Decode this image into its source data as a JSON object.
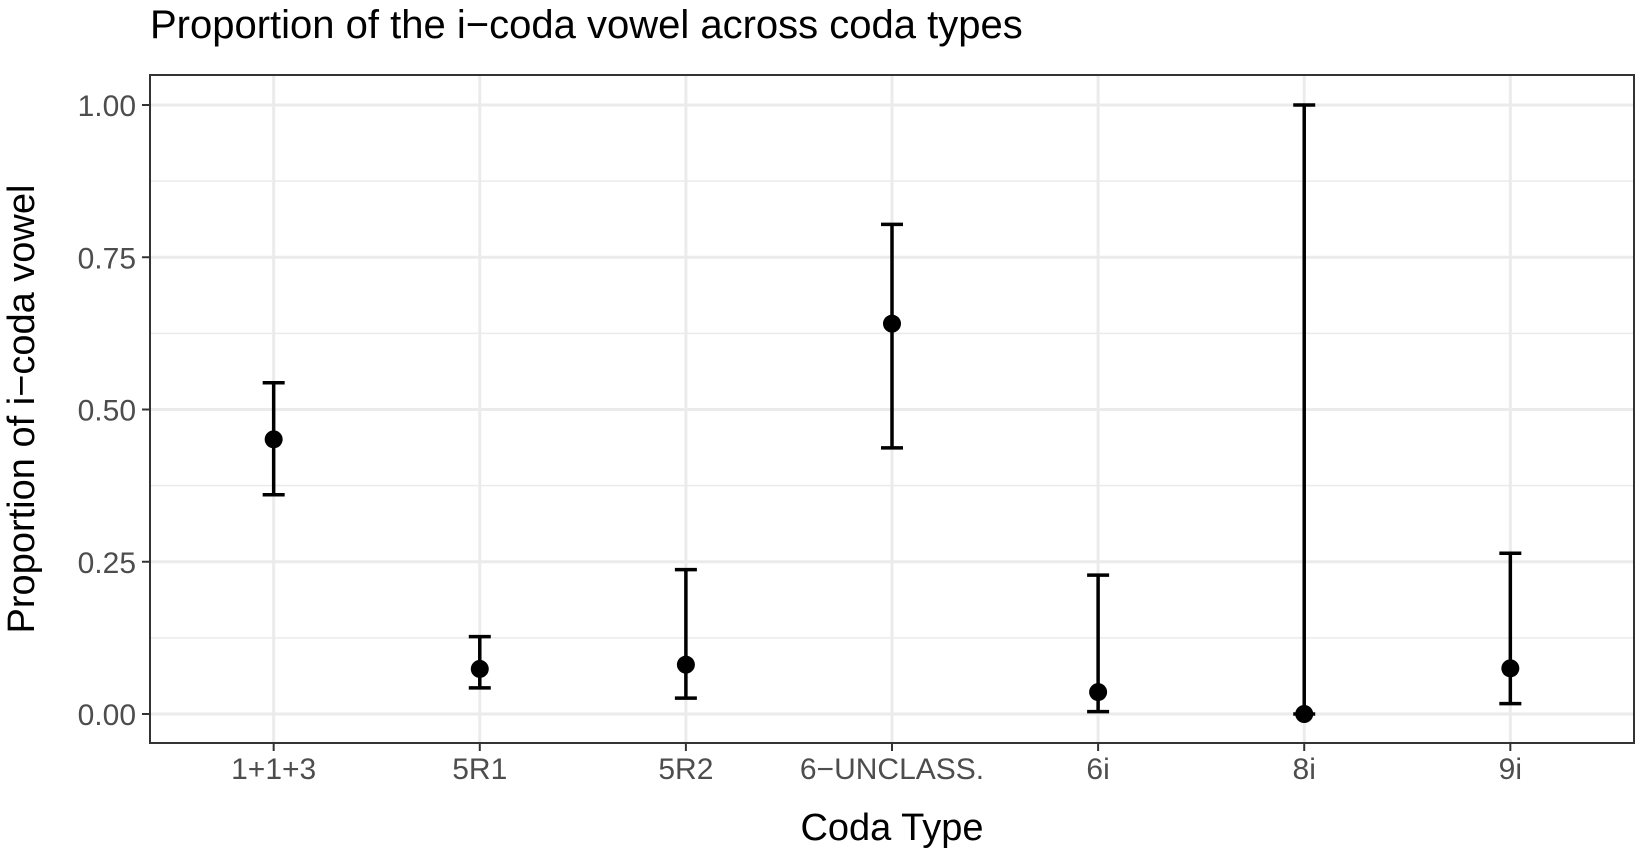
{
  "chart_data": {
    "type": "scatter",
    "title": "Proportion of the i−coda vowel across coda types",
    "xlabel": "Coda Type",
    "ylabel": "Proportion of i−coda vowel",
    "categories": [
      "1+1+3",
      "5R1",
      "5R2",
      "6−UNCLASS.",
      "6i",
      "8i",
      "9i"
    ],
    "values": [
      0.451,
      0.074,
      0.081,
      0.641,
      0.036,
      0.0,
      0.075
    ],
    "lower": [
      0.36,
      0.043,
      0.026,
      0.437,
      0.004,
      0.0,
      0.017
    ],
    "upper": [
      0.544,
      0.127,
      0.237,
      0.804,
      0.228,
      1.0,
      0.264
    ],
    "ylim": [
      -0.05,
      1.05
    ],
    "yticks": [
      0,
      0.25,
      0.5,
      0.75,
      1.0
    ],
    "ytick_labels": [
      "0.00",
      "0.25",
      "0.50",
      "0.75",
      "1.00"
    ],
    "grid": true,
    "colors": {
      "mark": "#000000",
      "grid": "#ebebeb",
      "border": "#333333",
      "tick_text": "#4d4d4d"
    }
  }
}
